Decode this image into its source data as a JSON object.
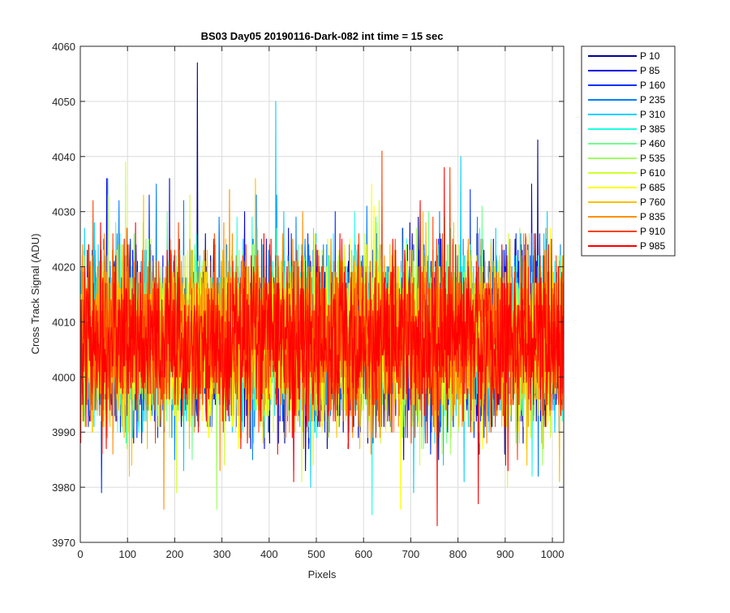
{
  "chart_data": {
    "type": "line",
    "title": "BS03 Day05 20190116-Dark-082 int time = 15 sec",
    "xlabel": "Pixels",
    "ylabel": "Cross Track Signal (ADU)",
    "xlim": [
      0,
      1024
    ],
    "ylim": [
      3970,
      4060
    ],
    "xticks": [
      0,
      100,
      200,
      300,
      400,
      500,
      600,
      700,
      800,
      900,
      1000
    ],
    "yticks": [
      3970,
      3980,
      3990,
      4000,
      4010,
      4020,
      4030,
      4040,
      4050,
      4060
    ],
    "grid": true,
    "legend_position": "outside-top-right",
    "colormap": "jet",
    "noise_model": {
      "mean": 4007,
      "stddev": 7.5,
      "n_points": 1024
    },
    "series": [
      {
        "name": "P 10",
        "color": "#00008f",
        "spikes": [
          [
            247,
            4057
          ],
          [
            968,
            4043
          ]
        ]
      },
      {
        "name": "P 85",
        "color": "#0000df",
        "spikes": [
          [
            55,
            4036
          ],
          [
            188,
            4036
          ],
          [
            955,
            4035
          ]
        ]
      },
      {
        "name": "P 160",
        "color": "#0030ff",
        "spikes": [
          [
            145,
            4033
          ],
          [
            825,
            4034
          ]
        ]
      },
      {
        "name": "P 235",
        "color": "#0080ff",
        "spikes": [
          [
            57,
            4036
          ],
          [
            160,
            4035
          ],
          [
            415,
            4033
          ]
        ]
      },
      {
        "name": "P 310",
        "color": "#00cfff",
        "spikes": [
          [
            413,
            4050
          ],
          [
            805,
            4040
          ]
        ]
      },
      {
        "name": "P 385",
        "color": "#20ffdf",
        "spikes": [
          [
            580,
            4030
          ],
          [
            617,
            3975
          ]
        ]
      },
      {
        "name": "P 460",
        "color": "#70ff8f",
        "spikes": [
          [
            850,
            4031
          ]
        ]
      },
      {
        "name": "P 535",
        "color": "#9fff60",
        "spikes": [
          [
            288,
            3976
          ]
        ]
      },
      {
        "name": "P 610",
        "color": "#cfff30",
        "spikes": [
          [
            95,
            4039
          ],
          [
            203,
            3979
          ]
        ]
      },
      {
        "name": "P 685",
        "color": "#ffff00",
        "spikes": [
          [
            677,
            3976
          ],
          [
            616,
            4035
          ]
        ]
      },
      {
        "name": "P 760",
        "color": "#ffbf00",
        "spikes": [
          [
            370,
            4036
          ],
          [
            945,
            3984
          ]
        ]
      },
      {
        "name": "P 835",
        "color": "#ff8f00",
        "spikes": [
          [
            315,
            4034
          ],
          [
            176,
            3976
          ]
        ]
      },
      {
        "name": "P 910",
        "color": "#ff4000",
        "spikes": [
          [
            638,
            4041
          ],
          [
            782,
            4038
          ],
          [
            26,
            4032
          ]
        ]
      },
      {
        "name": "P 985",
        "color": "#ff0000",
        "spikes": [
          [
            755,
            3973
          ],
          [
            842,
            3977
          ],
          [
            770,
            4038
          ]
        ]
      }
    ]
  }
}
